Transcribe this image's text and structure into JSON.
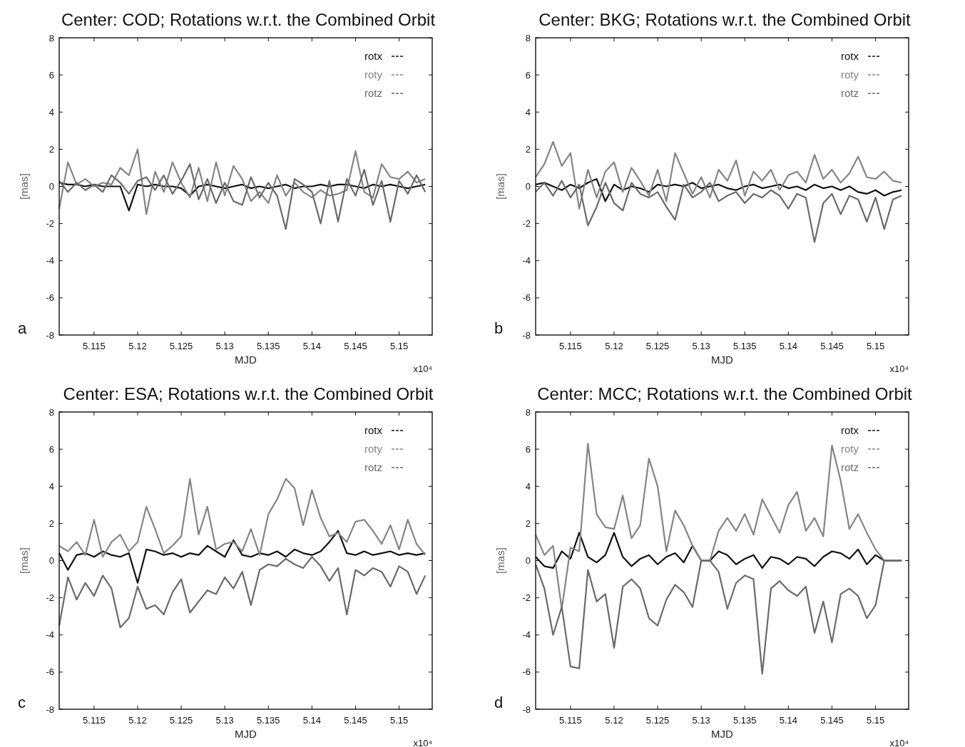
{
  "chart_data": [
    {
      "type": "line",
      "title": "Center: COD;  Rotations w.r.t. the Combined Orbit",
      "xlabel": "MJD",
      "ylabel": "[mas]",
      "annotations": [
        "a",
        "x10⁴"
      ],
      "legend": "top right",
      "line_style": "solid",
      "marker": "none",
      "xlim": [
        5.111,
        5.1538
      ],
      "ylim": [
        -8,
        8
      ],
      "xticks": [
        5.115,
        5.12,
        5.125,
        5.13,
        5.135,
        5.14,
        5.145,
        5.15
      ],
      "yticks": [
        -8,
        -6,
        -4,
        -2,
        0,
        2,
        4,
        6,
        8
      ],
      "x": [
        5.111,
        5.112,
        5.113,
        5.114,
        5.115,
        5.116,
        5.117,
        5.118,
        5.119,
        5.12,
        5.121,
        5.122,
        5.123,
        5.124,
        5.125,
        5.126,
        5.127,
        5.128,
        5.129,
        5.13,
        5.131,
        5.132,
        5.133,
        5.134,
        5.135,
        5.136,
        5.137,
        5.138,
        5.139,
        5.14,
        5.141,
        5.142,
        5.143,
        5.144,
        5.145,
        5.146,
        5.147,
        5.148,
        5.149,
        5.15,
        5.151,
        5.152,
        5.153
      ],
      "series": [
        {
          "name": "rotx",
          "color": "#111111",
          "values": [
            0.2,
            0.1,
            0.1,
            0,
            0.1,
            0,
            0,
            0,
            -1.3,
            0.1,
            0,
            0.1,
            0,
            0,
            -0.1,
            -0.5,
            0,
            0.1,
            0,
            -0.1,
            0,
            0.1,
            -0.1,
            0,
            -0.1,
            0,
            0.1,
            -0.1,
            0,
            0,
            0.1,
            0,
            0.1,
            0.1,
            0,
            -0.1,
            0.1,
            0,
            0.1,
            0,
            -0.1,
            0,
            0.1
          ]
        },
        {
          "name": "roty",
          "color": "#858585",
          "values": [
            -1.2,
            1.3,
            0.1,
            0.4,
            0,
            0.2,
            0.1,
            1.0,
            0.6,
            2.0,
            -1.5,
            0.8,
            -0.3,
            1.3,
            0.2,
            -0.6,
            1.0,
            -0.8,
            1.3,
            -0.5,
            1.1,
            0.4,
            -0.8,
            -0.3,
            -0.9,
            0.6,
            -0.5,
            0.2,
            -0.3,
            -0.6,
            -0.2,
            -0.5,
            -0.4,
            -0.2,
            1.9,
            -0.3,
            -0.6,
            1.2,
            0.5,
            0.4,
            0.8,
            0.2,
            0.4
          ]
        },
        {
          "name": "rotz",
          "color": "#6a6a6a",
          "values": [
            0.3,
            -0.3,
            0.2,
            -0.2,
            0.1,
            -0.3,
            0.6,
            0.2,
            -0.4,
            0.3,
            0.5,
            -0.2,
            0.6,
            -0.4,
            0.3,
            1.2,
            -0.7,
            0.4,
            -0.9,
            0.2,
            -0.8,
            -1.0,
            0.5,
            -0.6,
            0.2,
            -0.5,
            -2.3,
            0.4,
            0.1,
            -0.3,
            -2.0,
            0.3,
            -1.9,
            0.4,
            -0.5,
            0.9,
            -1.0,
            0.3,
            -1.9,
            0.3,
            -0.4,
            0.6,
            -0.3
          ]
        }
      ]
    },
    {
      "type": "line",
      "title": "Center: BKG;  Rotations w.r.t. the Combined Orbit",
      "xlabel": "MJD",
      "ylabel": "[mas]",
      "annotations": [
        "b",
        "x10⁴"
      ],
      "legend": "top right",
      "line_style": "solid",
      "marker": "none",
      "xlim": [
        5.111,
        5.1538
      ],
      "ylim": [
        -8,
        8
      ],
      "xticks": [
        5.115,
        5.12,
        5.125,
        5.13,
        5.135,
        5.14,
        5.145,
        5.15
      ],
      "yticks": [
        -8,
        -6,
        -4,
        -2,
        0,
        2,
        4,
        6,
        8
      ],
      "x": [
        5.111,
        5.112,
        5.113,
        5.114,
        5.115,
        5.116,
        5.117,
        5.118,
        5.119,
        5.12,
        5.121,
        5.122,
        5.123,
        5.124,
        5.125,
        5.126,
        5.127,
        5.128,
        5.129,
        5.13,
        5.131,
        5.132,
        5.133,
        5.134,
        5.135,
        5.136,
        5.137,
        5.138,
        5.139,
        5.14,
        5.141,
        5.142,
        5.143,
        5.144,
        5.145,
        5.146,
        5.147,
        5.148,
        5.149,
        5.15,
        5.151,
        5.152,
        5.153
      ],
      "series": [
        {
          "name": "rotx",
          "color": "#111111",
          "values": [
            0.1,
            0.2,
            0,
            -0.2,
            0.1,
            -0.1,
            0.2,
            0.4,
            -0.8,
            0.1,
            -0.2,
            0,
            -0.1,
            -0.3,
            0.1,
            0,
            0.1,
            0,
            0.2,
            -0.1,
            0,
            0.1,
            -0.1,
            -0.2,
            0,
            0.1,
            -0.1,
            0,
            0.1,
            -0.1,
            0,
            -0.2,
            0.1,
            -0.1,
            0,
            -0.2,
            0,
            -0.3,
            -0.4,
            -0.2,
            -0.5,
            -0.3,
            -0.2
          ]
        },
        {
          "name": "roty",
          "color": "#858585",
          "values": [
            0.5,
            1.2,
            2.4,
            1.1,
            1.8,
            -1.2,
            0.9,
            -0.6,
            0.8,
            1.3,
            -0.3,
            1.0,
            0.3,
            -0.5,
            0.9,
            -0.8,
            1.8,
            0.7,
            -0.4,
            0.5,
            -0.6,
            0.9,
            0.3,
            1.4,
            -0.5,
            0.8,
            0.3,
            0.9,
            -0.2,
            0.6,
            0.8,
            0.2,
            1.7,
            0.4,
            0.9,
            0.2,
            0.7,
            1.6,
            0.5,
            0.4,
            0.8,
            0.3,
            0.2
          ]
        },
        {
          "name": "rotz",
          "color": "#6a6a6a",
          "values": [
            -0.3,
            0.2,
            -0.5,
            0.3,
            -0.6,
            0.1,
            -2.1,
            -1.1,
            0.2,
            -0.9,
            -1.3,
            0.2,
            -0.4,
            -0.6,
            -0.3,
            -1.1,
            -1.8,
            0.1,
            -0.6,
            -0.3,
            0.2,
            -0.8,
            -0.5,
            -0.3,
            -0.9,
            -0.4,
            -0.6,
            -0.2,
            -0.5,
            -1.2,
            -0.4,
            -0.6,
            -3.0,
            -0.9,
            -0.4,
            -1.5,
            -0.5,
            -0.7,
            -1.9,
            -0.6,
            -2.3,
            -0.7,
            -0.5
          ]
        }
      ]
    },
    {
      "type": "line",
      "title": "Center: ESA;  Rotations w.r.t. the Combined Orbit",
      "xlabel": "MJD",
      "ylabel": "[mas]",
      "annotations": [
        "c",
        "x10⁴"
      ],
      "legend": "top right",
      "line_style": "solid",
      "marker": "none",
      "xlim": [
        5.111,
        5.1538
      ],
      "ylim": [
        -8,
        8
      ],
      "xticks": [
        5.115,
        5.12,
        5.125,
        5.13,
        5.135,
        5.14,
        5.145,
        5.15
      ],
      "yticks": [
        -8,
        -6,
        -4,
        -2,
        0,
        2,
        4,
        6,
        8
      ],
      "x": [
        5.111,
        5.112,
        5.113,
        5.114,
        5.115,
        5.116,
        5.117,
        5.118,
        5.119,
        5.12,
        5.121,
        5.122,
        5.123,
        5.124,
        5.125,
        5.126,
        5.127,
        5.128,
        5.129,
        5.13,
        5.131,
        5.132,
        5.133,
        5.134,
        5.135,
        5.136,
        5.137,
        5.138,
        5.139,
        5.14,
        5.141,
        5.142,
        5.143,
        5.144,
        5.145,
        5.146,
        5.147,
        5.148,
        5.149,
        5.15,
        5.151,
        5.152,
        5.153
      ],
      "series": [
        {
          "name": "rotx",
          "color": "#111111",
          "values": [
            0.4,
            -0.5,
            0.3,
            0.4,
            0.2,
            0.5,
            0.3,
            0.2,
            0.4,
            -1.2,
            0.6,
            0.5,
            0.3,
            0.4,
            0.2,
            0.4,
            0.3,
            0.8,
            0.5,
            0.2,
            1.1,
            0.3,
            0.2,
            0.4,
            0.3,
            0.5,
            0.2,
            0.6,
            0.4,
            0.3,
            0.5,
            1.0,
            1.6,
            0.4,
            0.3,
            0.5,
            0.3,
            0.4,
            0.5,
            0.3,
            0.4,
            0.3,
            0.4
          ]
        },
        {
          "name": "roty",
          "color": "#858585",
          "values": [
            0.8,
            0.5,
            1.0,
            0.3,
            2.2,
            0.2,
            1.0,
            1.4,
            0.5,
            1.0,
            2.9,
            1.7,
            0.4,
            0.8,
            1.3,
            4.4,
            1.4,
            2.9,
            0.6,
            0.9,
            1.0,
            0.5,
            1.7,
            0.3,
            2.5,
            3.3,
            4.4,
            3.9,
            1.9,
            3.8,
            2.3,
            1.3,
            1.5,
            1.0,
            2.1,
            2.2,
            1.6,
            0.9,
            1.9,
            0.6,
            2.2,
            0.9,
            0.3
          ]
        },
        {
          "name": "rotz",
          "color": "#6a6a6a",
          "values": [
            -3.5,
            -0.9,
            -2.1,
            -1.2,
            -1.9,
            -0.8,
            -1.5,
            -3.6,
            -3.1,
            -1.4,
            -2.6,
            -2.4,
            -2.9,
            -1.7,
            -1.0,
            -2.8,
            -2.2,
            -1.6,
            -1.8,
            -0.9,
            -1.5,
            -0.6,
            -2.4,
            -0.5,
            -0.2,
            -0.3,
            0.1,
            -0.2,
            -0.4,
            0.2,
            -0.3,
            -1.1,
            -0.4,
            -2.9,
            -0.5,
            -0.8,
            -0.4,
            -0.6,
            -1.4,
            -0.3,
            -0.6,
            -1.8,
            -0.8
          ]
        }
      ]
    },
    {
      "type": "line",
      "title": "Center: MCC;  Rotations w.r.t. the Combined Orbit",
      "xlabel": "MJD",
      "ylabel": "[mas]",
      "annotations": [
        "d",
        "x10⁴"
      ],
      "legend": "top right",
      "line_style": "solid",
      "marker": "none",
      "xlim": [
        5.111,
        5.1538
      ],
      "ylim": [
        -8,
        8
      ],
      "xticks": [
        5.115,
        5.12,
        5.125,
        5.13,
        5.135,
        5.14,
        5.145,
        5.15
      ],
      "yticks": [
        -8,
        -6,
        -4,
        -2,
        0,
        2,
        4,
        6,
        8
      ],
      "x": [
        5.111,
        5.112,
        5.113,
        5.114,
        5.115,
        5.116,
        5.117,
        5.118,
        5.119,
        5.12,
        5.121,
        5.122,
        5.123,
        5.124,
        5.125,
        5.126,
        5.127,
        5.128,
        5.129,
        5.13,
        5.131,
        5.132,
        5.133,
        5.134,
        5.135,
        5.136,
        5.137,
        5.138,
        5.139,
        5.14,
        5.141,
        5.142,
        5.143,
        5.144,
        5.145,
        5.146,
        5.147,
        5.148,
        5.149,
        5.15,
        5.151,
        5.152,
        5.153
      ],
      "series": [
        {
          "name": "rotx",
          "color": "#111111",
          "values": [
            0.2,
            -0.3,
            -0.4,
            0.5,
            0.1,
            1.5,
            0.2,
            -0.1,
            0.3,
            1.5,
            0.2,
            -0.3,
            0.1,
            0.3,
            -0.2,
            0.2,
            0.4,
            -0.1,
            0.8,
            0,
            0,
            0.5,
            0.3,
            -0.2,
            0.1,
            0.3,
            -0.4,
            0.2,
            0.1,
            -0.2,
            0.2,
            0.1,
            -0.3,
            0.2,
            0.5,
            0.4,
            0.1,
            0.6,
            -0.2,
            0.3,
            0,
            0,
            0
          ]
        },
        {
          "name": "roty",
          "color": "#858585",
          "values": [
            1.4,
            0.3,
            0.8,
            -2.6,
            0.7,
            0.5,
            6.3,
            2.5,
            1.8,
            1.7,
            3.5,
            1.2,
            1.9,
            5.5,
            4.0,
            0.5,
            2.7,
            1.9,
            0.8,
            0,
            0,
            1.6,
            2.3,
            1.6,
            2.5,
            1.4,
            3.3,
            2.4,
            1.5,
            3.0,
            3.7,
            1.6,
            2.3,
            1.3,
            6.2,
            4.3,
            1.7,
            2.5,
            1.5,
            0.6,
            0,
            0,
            0
          ]
        },
        {
          "name": "rotz",
          "color": "#6a6a6a",
          "values": [
            -0.2,
            -1.5,
            -4.0,
            -2.5,
            -5.7,
            -5.8,
            -0.5,
            -2.2,
            -1.8,
            -4.7,
            -1.4,
            -1.0,
            -1.5,
            -3.1,
            -3.5,
            -2.1,
            -1.3,
            -1.7,
            -2.5,
            0,
            0,
            -0.6,
            -2.6,
            -1.2,
            -0.8,
            -1.0,
            -6.1,
            -1.5,
            -1.1,
            -1.6,
            -1.9,
            -1.4,
            -3.9,
            -2.2,
            -4.4,
            -1.8,
            -1.5,
            -1.9,
            -3.1,
            -2.4,
            0,
            0,
            0
          ]
        }
      ]
    }
  ]
}
